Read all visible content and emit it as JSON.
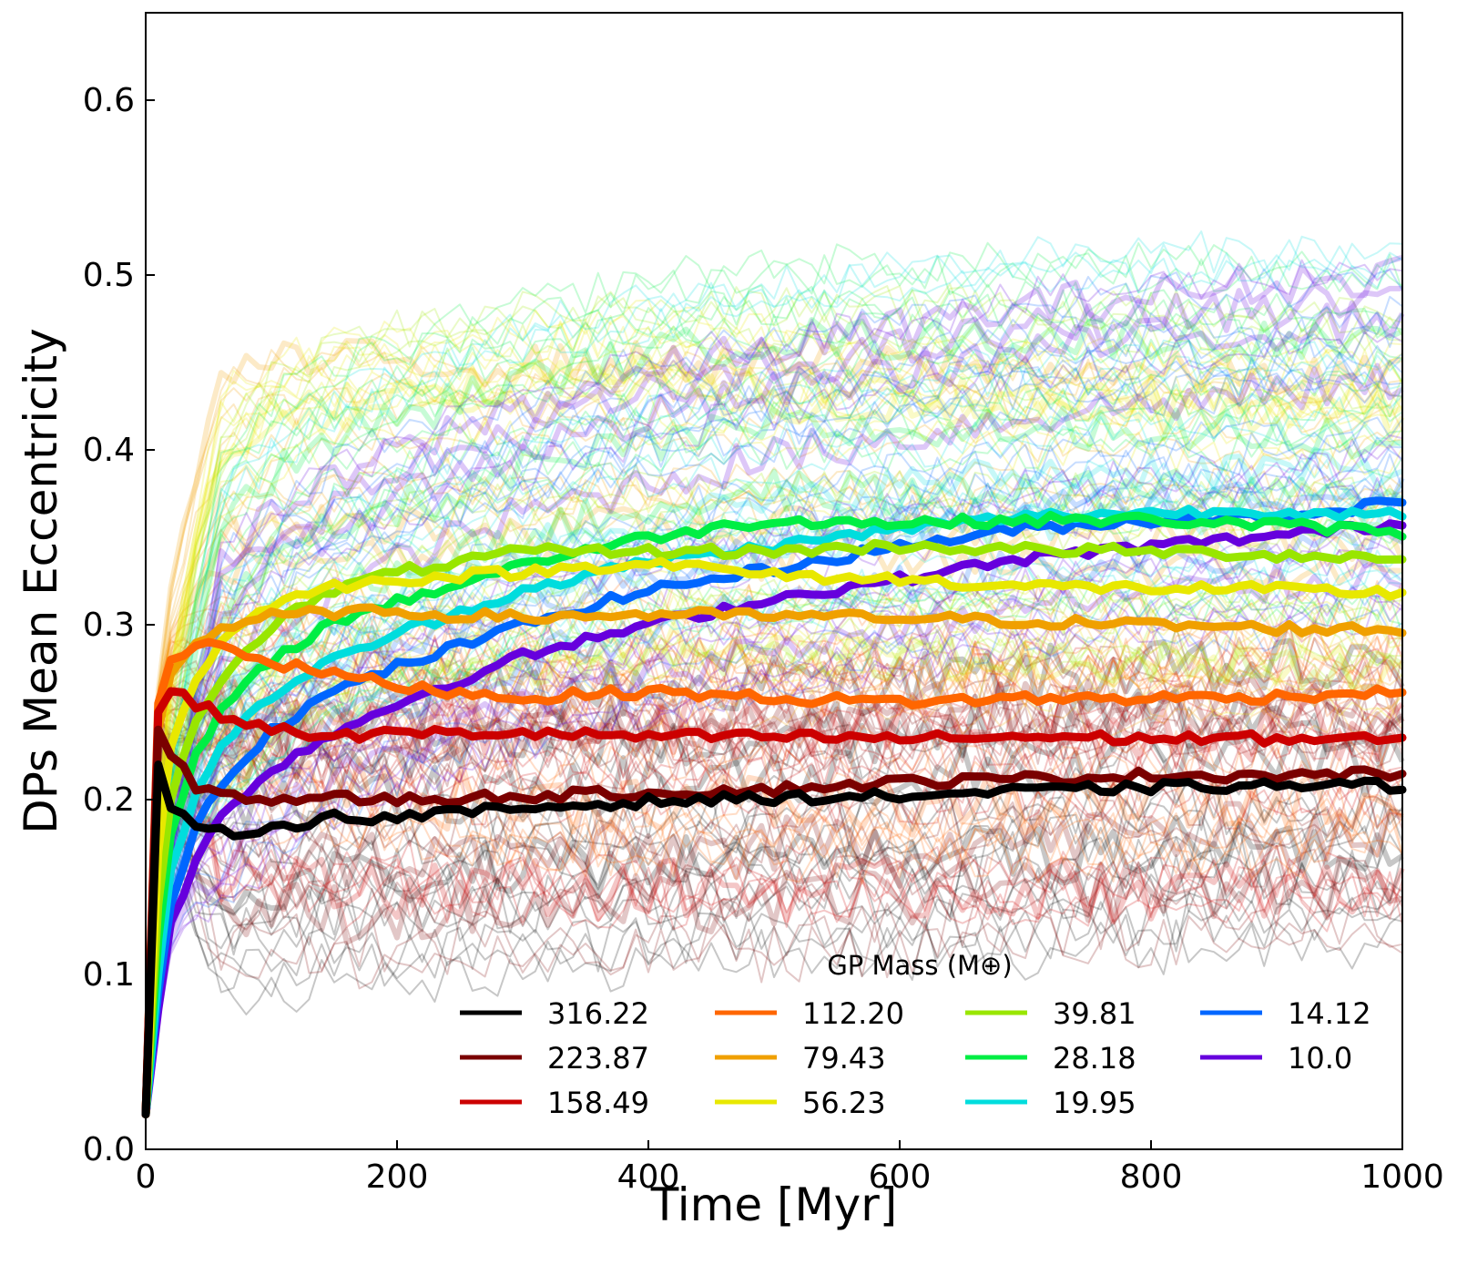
{
  "chart_data": {
    "type": "line",
    "title": "",
    "xlabel": "Time [Myr]",
    "ylabel": "DPs Mean Eccentricity",
    "xlim": [
      0,
      1000
    ],
    "ylim": [
      0.0,
      0.65
    ],
    "xticks": [
      0,
      200,
      400,
      600,
      800,
      1000
    ],
    "xtick_labels": [
      "0",
      "200",
      "400",
      "600",
      "800",
      "1000"
    ],
    "yticks": [
      0.0,
      0.1,
      0.2,
      0.3,
      0.4,
      0.5,
      0.6
    ],
    "ytick_labels": [
      "0.0",
      "0.1",
      "0.2",
      "0.3",
      "0.4",
      "0.5",
      "0.6"
    ],
    "grid": false,
    "legend": {
      "title": "GP Mass (M⊕)",
      "placement": "lower-right",
      "columns": 4
    },
    "note": "Background: many faint individual simulation runs per mass (eccentricity roughly 0.10-0.53); values below are the bold mean curves.",
    "series": [
      {
        "name": "316.22",
        "color": "#000000",
        "x": [
          0,
          5,
          10,
          20,
          40,
          60,
          100,
          150,
          200,
          300,
          400,
          500,
          600,
          700,
          800,
          900,
          1000
        ],
        "values": [
          0.02,
          0.1,
          0.22,
          0.195,
          0.183,
          0.181,
          0.184,
          0.19,
          0.19,
          0.195,
          0.199,
          0.201,
          0.202,
          0.205,
          0.207,
          0.208,
          0.208
        ]
      },
      {
        "name": "223.87",
        "color": "#7a0000",
        "x": [
          0,
          5,
          10,
          20,
          40,
          60,
          100,
          150,
          200,
          300,
          400,
          500,
          600,
          700,
          800,
          900,
          1000
        ],
        "values": [
          0.02,
          0.15,
          0.24,
          0.225,
          0.208,
          0.203,
          0.2,
          0.201,
          0.2,
          0.202,
          0.204,
          0.206,
          0.21,
          0.212,
          0.214,
          0.214,
          0.215
        ]
      },
      {
        "name": "158.49",
        "color": "#cc0000",
        "x": [
          0,
          5,
          10,
          20,
          40,
          60,
          100,
          150,
          200,
          300,
          400,
          500,
          600,
          700,
          800,
          900,
          1000
        ],
        "values": [
          0.02,
          0.18,
          0.25,
          0.262,
          0.255,
          0.248,
          0.24,
          0.236,
          0.238,
          0.238,
          0.236,
          0.236,
          0.235,
          0.236,
          0.235,
          0.235,
          0.234
        ]
      },
      {
        "name": "112.20",
        "color": "#ff6600",
        "x": [
          0,
          5,
          10,
          20,
          40,
          60,
          100,
          150,
          200,
          300,
          400,
          500,
          600,
          700,
          800,
          900,
          1000
        ],
        "values": [
          0.02,
          0.18,
          0.255,
          0.28,
          0.288,
          0.29,
          0.278,
          0.272,
          0.265,
          0.258,
          0.262,
          0.258,
          0.256,
          0.258,
          0.258,
          0.259,
          0.262
        ]
      },
      {
        "name": "79.43",
        "color": "#f0a000",
        "x": [
          0,
          5,
          10,
          20,
          40,
          60,
          100,
          150,
          200,
          300,
          400,
          500,
          600,
          700,
          800,
          900,
          1000
        ],
        "values": [
          0.02,
          0.16,
          0.24,
          0.272,
          0.29,
          0.298,
          0.305,
          0.307,
          0.307,
          0.304,
          0.306,
          0.305,
          0.304,
          0.302,
          0.3,
          0.298,
          0.297
        ]
      },
      {
        "name": "56.23",
        "color": "#e8e800",
        "x": [
          0,
          5,
          10,
          20,
          40,
          60,
          100,
          150,
          200,
          300,
          400,
          500,
          600,
          700,
          800,
          900,
          1000
        ],
        "values": [
          0.02,
          0.1,
          0.17,
          0.23,
          0.27,
          0.29,
          0.312,
          0.322,
          0.326,
          0.33,
          0.336,
          0.328,
          0.326,
          0.322,
          0.321,
          0.32,
          0.318
        ]
      },
      {
        "name": "39.81",
        "color": "#99e600",
        "x": [
          0,
          5,
          10,
          20,
          40,
          60,
          100,
          150,
          200,
          300,
          400,
          500,
          600,
          700,
          800,
          900,
          1000
        ],
        "values": [
          0.02,
          0.08,
          0.14,
          0.2,
          0.245,
          0.27,
          0.3,
          0.32,
          0.33,
          0.342,
          0.342,
          0.342,
          0.345,
          0.343,
          0.342,
          0.34,
          0.338
        ]
      },
      {
        "name": "28.18",
        "color": "#00ee44",
        "x": [
          0,
          5,
          10,
          20,
          40,
          60,
          100,
          150,
          200,
          300,
          400,
          500,
          600,
          700,
          800,
          900,
          1000
        ],
        "values": [
          0.02,
          0.07,
          0.12,
          0.18,
          0.225,
          0.25,
          0.28,
          0.302,
          0.313,
          0.335,
          0.35,
          0.36,
          0.358,
          0.36,
          0.36,
          0.357,
          0.353
        ]
      },
      {
        "name": "19.95",
        "color": "#00dddd",
        "x": [
          0,
          5,
          10,
          20,
          40,
          60,
          100,
          150,
          200,
          300,
          400,
          500,
          600,
          700,
          800,
          900,
          1000
        ],
        "values": [
          0.02,
          0.06,
          0.1,
          0.16,
          0.205,
          0.23,
          0.26,
          0.28,
          0.295,
          0.32,
          0.336,
          0.345,
          0.355,
          0.362,
          0.364,
          0.365,
          0.362
        ]
      },
      {
        "name": "14.12",
        "color": "#0066ff",
        "x": [
          0,
          5,
          10,
          20,
          40,
          60,
          100,
          150,
          200,
          300,
          400,
          500,
          600,
          700,
          800,
          900,
          1000
        ],
        "values": [
          0.02,
          0.05,
          0.09,
          0.14,
          0.185,
          0.21,
          0.24,
          0.262,
          0.276,
          0.3,
          0.32,
          0.332,
          0.345,
          0.355,
          0.36,
          0.362,
          0.37
        ]
      },
      {
        "name": "10.0",
        "color": "#6600dd",
        "x": [
          0,
          5,
          10,
          20,
          40,
          60,
          100,
          150,
          200,
          300,
          400,
          500,
          600,
          700,
          800,
          900,
          1000
        ],
        "values": [
          0.02,
          0.05,
          0.08,
          0.13,
          0.165,
          0.19,
          0.218,
          0.238,
          0.255,
          0.282,
          0.3,
          0.315,
          0.326,
          0.338,
          0.345,
          0.351,
          0.358
        ]
      }
    ]
  }
}
